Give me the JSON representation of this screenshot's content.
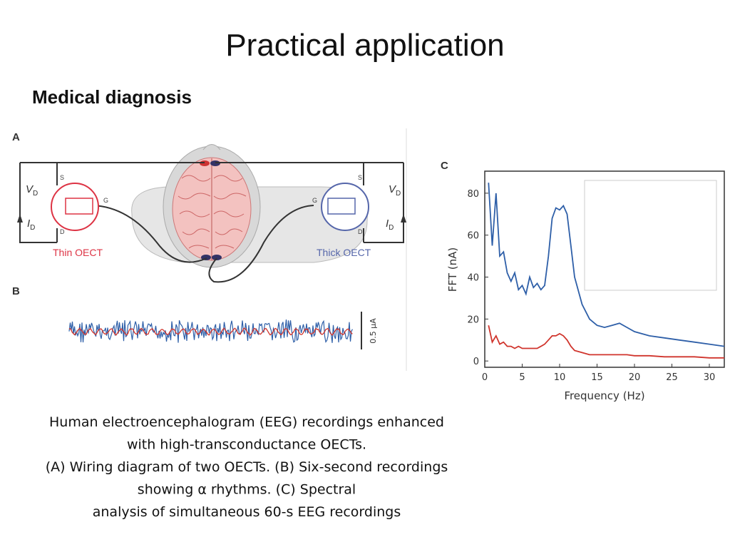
{
  "title": "Practical application",
  "subtitle": "Medical diagnosis",
  "panel_a": {
    "label": "A",
    "left_transistor": {
      "name": "Thin OECT",
      "source": "S",
      "gate": "G",
      "drain": "D"
    },
    "right_transistor": {
      "name": "Thick OECT",
      "source": "S",
      "gate": "G",
      "drain": "D"
    },
    "voltage": {
      "main": "V",
      "sub": "D"
    },
    "current": {
      "main": "I",
      "sub": "D"
    }
  },
  "panel_b": {
    "label": "B",
    "scale_bar": "0.5 μA"
  },
  "panel_c_label": "C",
  "chart_data": {
    "type": "line",
    "xlabel": "Frequency (Hz)",
    "ylabel": "FFT (nA)",
    "x": [
      0.5,
      1,
      1.5,
      2,
      2.5,
      3,
      3.5,
      4,
      4.5,
      5,
      5.5,
      6,
      6.5,
      7,
      7.5,
      8,
      8.5,
      9,
      9.5,
      10,
      10.5,
      11,
      11.5,
      12,
      13,
      14,
      15,
      16,
      17,
      18,
      19,
      20,
      22,
      24,
      26,
      28,
      30,
      32
    ],
    "series": [
      {
        "color": "#2e5fa8",
        "values": [
          85,
          55,
          80,
          50,
          52,
          42,
          38,
          42,
          34,
          36,
          32,
          40,
          35,
          37,
          34,
          36,
          50,
          68,
          73,
          72,
          74,
          70,
          55,
          40,
          27,
          20,
          17,
          16,
          17,
          18,
          16,
          14,
          12,
          11,
          10,
          9,
          8,
          7
        ]
      },
      {
        "color": "#d0342c",
        "values": [
          17,
          9,
          12,
          8,
          9,
          7,
          7,
          6,
          7,
          6,
          6,
          6,
          6,
          6,
          7,
          8,
          10,
          12,
          12,
          13,
          12,
          10,
          7,
          5,
          4,
          3,
          3,
          3,
          3,
          3,
          3,
          2.5,
          2.5,
          2,
          2,
          2,
          1.5,
          1.5
        ]
      }
    ],
    "xlim": [
      0,
      32
    ],
    "ylim": [
      -3,
      90.5
    ],
    "xticks": [
      0,
      5,
      10,
      15,
      20,
      25,
      30
    ],
    "yticks": [
      0,
      20,
      40,
      60,
      80
    ]
  },
  "caption": [
    "Human electroencephalogram (EEG) recordings enhanced",
    "with high-transconductance OECTs.",
    "(A) Wiring diagram of two OECTs. (B) Six-second recordings",
    "showing α rhythms. (C) Spectral",
    "analysis of simultaneous 60-s EEG recordings"
  ]
}
